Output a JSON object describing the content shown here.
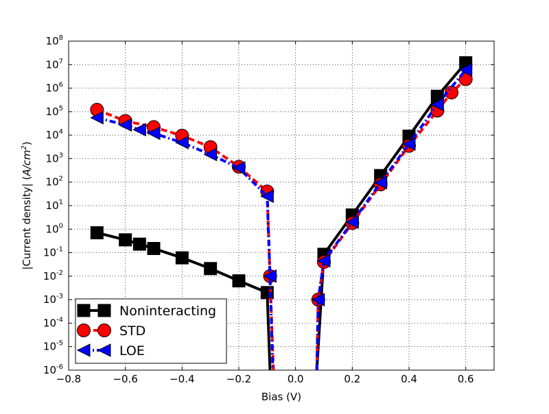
{
  "chart_data": {
    "type": "line",
    "xlabel": "Bias (V)",
    "ylabel": "|Current density| (",
    "ylabel_unit": "A/cm",
    "ylabel_unit_exp": "2",
    "ylabel_close": ")",
    "xlim": [
      -0.8,
      0.7
    ],
    "ylim": [
      1e-06,
      100000000.0
    ],
    "yscale": "log",
    "grid": true,
    "legend_position": "lower-left",
    "x_ticks": [
      -0.8,
      -0.6,
      -0.4,
      -0.2,
      0.0,
      0.2,
      0.4,
      0.6
    ],
    "x_tick_labels": [
      "−0.8",
      "−0.6",
      "−0.4",
      "−0.2",
      "0.0",
      "0.2",
      "0.4",
      "0.6"
    ],
    "y_tick_exponents": [
      -6,
      -5,
      -4,
      -3,
      -2,
      -1,
      0,
      1,
      2,
      3,
      4,
      5,
      6,
      7,
      8
    ],
    "y_tick_base": "10",
    "y_tick_exp_labels": [
      "-6",
      "-5",
      "-4",
      "-3",
      "-2",
      "-1",
      "0",
      "1",
      "2",
      "3",
      "4",
      "5",
      "6",
      "7",
      "8"
    ],
    "series": [
      {
        "name": "Noninteracting",
        "color": "#000000",
        "marker": "square",
        "linestyle": "solid",
        "points": [
          {
            "x": -0.7,
            "y": 0.7
          },
          {
            "x": -0.6,
            "y": 0.35
          },
          {
            "x": -0.55,
            "y": 0.23
          },
          {
            "x": -0.5,
            "y": 0.15
          },
          {
            "x": -0.4,
            "y": 0.06
          },
          {
            "x": -0.3,
            "y": 0.021
          },
          {
            "x": -0.2,
            "y": 0.0063
          },
          {
            "x": -0.1,
            "y": 0.002
          },
          {
            "x": -0.09,
            "y": 1e-06
          }
        ],
        "points_branch2": [
          {
            "x": 0.075,
            "y": 1e-06
          },
          {
            "x": 0.1,
            "y": 0.085
          },
          {
            "x": 0.2,
            "y": 4.0
          },
          {
            "x": 0.3,
            "y": 190
          },
          {
            "x": 0.4,
            "y": 9000
          },
          {
            "x": 0.5,
            "y": 450000
          },
          {
            "x": 0.6,
            "y": 12000000
          }
        ]
      },
      {
        "name": "STD",
        "color": "#ff0000",
        "marker": "circle",
        "linestyle": "dashed",
        "points": [
          {
            "x": -0.7,
            "y": 120000
          },
          {
            "x": -0.6,
            "y": 40000
          },
          {
            "x": -0.5,
            "y": 22000
          },
          {
            "x": -0.4,
            "y": 9500
          },
          {
            "x": -0.3,
            "y": 3100
          },
          {
            "x": -0.2,
            "y": 450
          },
          {
            "x": -0.1,
            "y": 40
          },
          {
            "x": -0.09,
            "y": 0.01
          },
          {
            "x": -0.078,
            "y": 1e-06
          }
        ],
        "points_branch2": [
          {
            "x": 0.075,
            "y": 1e-06
          },
          {
            "x": 0.08,
            "y": 0.001
          },
          {
            "x": 0.1,
            "y": 0.04
          },
          {
            "x": 0.2,
            "y": 1.8
          },
          {
            "x": 0.3,
            "y": 80
          },
          {
            "x": 0.4,
            "y": 3500
          },
          {
            "x": 0.5,
            "y": 110000
          },
          {
            "x": 0.55,
            "y": 650000
          },
          {
            "x": 0.6,
            "y": 2400000
          }
        ]
      },
      {
        "name": "LOE",
        "color": "#0000ff",
        "marker": "triangle-left",
        "linestyle": "dashdot",
        "points": [
          {
            "x": -0.7,
            "y": 55000
          },
          {
            "x": -0.6,
            "y": 27000
          },
          {
            "x": -0.55,
            "y": 17000
          },
          {
            "x": -0.5,
            "y": 12000
          },
          {
            "x": -0.4,
            "y": 4800
          },
          {
            "x": -0.3,
            "y": 1500
          },
          {
            "x": -0.2,
            "y": 400
          },
          {
            "x": -0.1,
            "y": 25
          },
          {
            "x": -0.09,
            "y": 0.01
          },
          {
            "x": -0.08,
            "y": 1e-06
          }
        ],
        "points_branch2": [
          {
            "x": 0.075,
            "y": 1e-06
          },
          {
            "x": 0.08,
            "y": 0.001
          },
          {
            "x": 0.1,
            "y": 0.045
          },
          {
            "x": 0.2,
            "y": 2.0
          },
          {
            "x": 0.3,
            "y": 95
          },
          {
            "x": 0.4,
            "y": 4200
          },
          {
            "x": 0.5,
            "y": 200000
          },
          {
            "x": 0.6,
            "y": 6000000
          }
        ]
      }
    ]
  }
}
